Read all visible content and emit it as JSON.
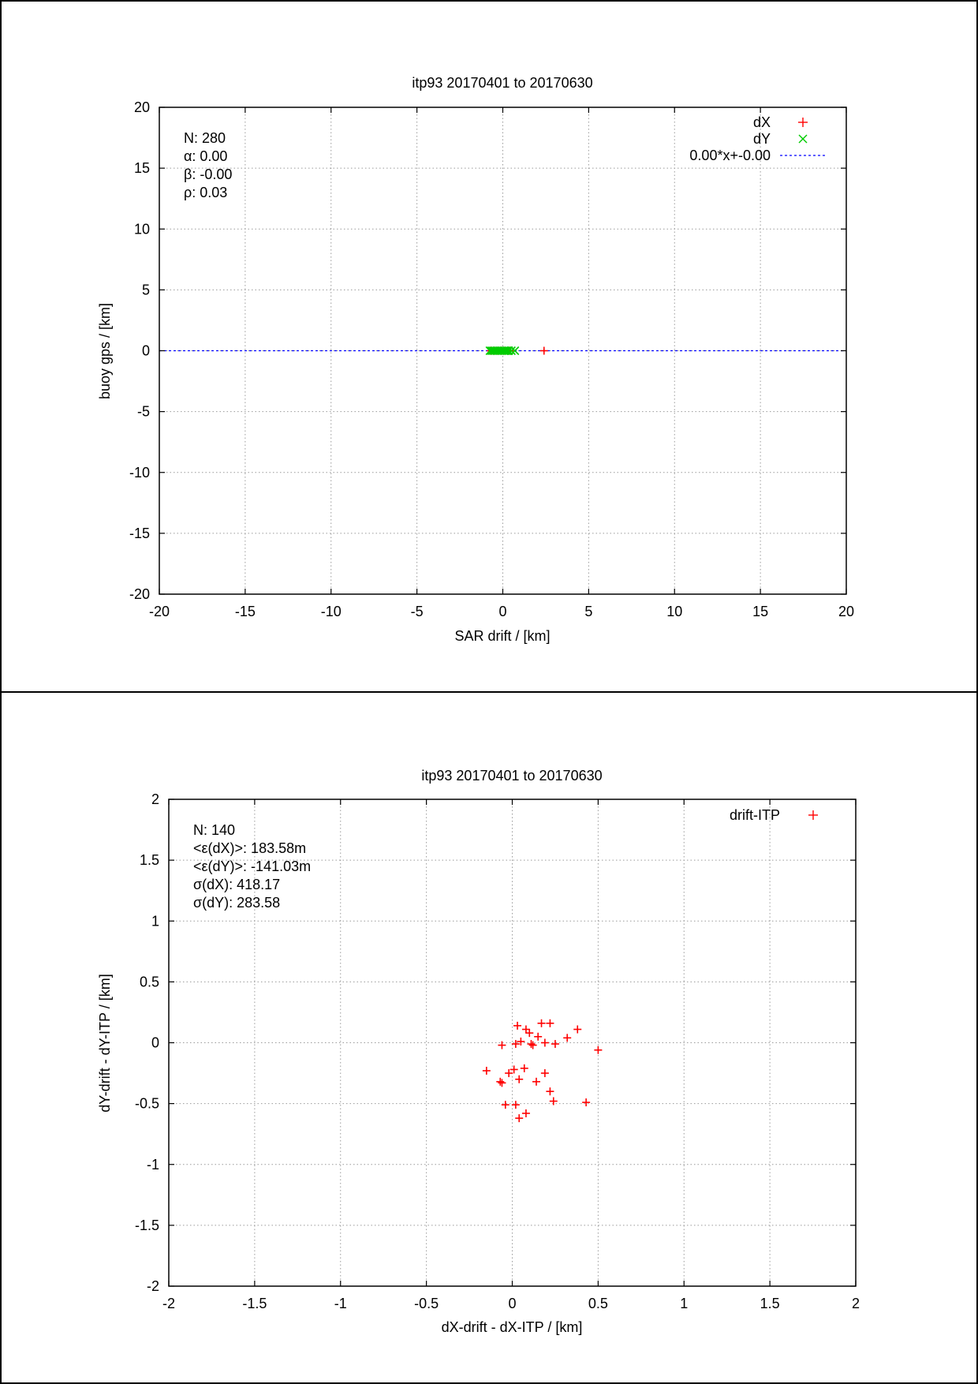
{
  "chart_data": [
    {
      "type": "scatter",
      "title": "itp93 20170401 to 20170630",
      "xlabel": "SAR drift / [km]",
      "ylabel": "buoy gps / [km]",
      "xlim": [
        -20,
        20
      ],
      "ylim": [
        -20,
        20
      ],
      "xticks": [
        "-20",
        "-15",
        "-10",
        "-5",
        "0",
        "5",
        "10",
        "15",
        "20"
      ],
      "yticks": [
        "-20",
        "-15",
        "-10",
        "-5",
        "0",
        "5",
        "10",
        "15",
        "20"
      ],
      "grid": true,
      "legend_position": "top-right",
      "stats": [
        "N: 280",
        "α: 0.00",
        "β: -0.00",
        "ρ: 0.03"
      ],
      "series": [
        {
          "name": "dX",
          "marker": "plus",
          "color": "#ff0000",
          "x": [
            -0.7,
            -0.5,
            -0.3,
            -0.1,
            0.1,
            0.3,
            0.4,
            2.4
          ],
          "y": [
            0,
            0,
            0,
            0,
            0,
            0,
            0,
            0
          ]
        },
        {
          "name": "dY",
          "marker": "cross",
          "color": "#00cc00",
          "x": [
            -0.75,
            -0.65,
            -0.55,
            -0.45,
            -0.35,
            -0.25,
            -0.15,
            -0.05,
            0.05,
            0.15,
            0.25,
            0.35,
            0.5,
            0.7
          ],
          "y": [
            0,
            0,
            0,
            0,
            0,
            0,
            0,
            0,
            0,
            0,
            0,
            0,
            0,
            0
          ]
        },
        {
          "name": "0.00*x+-0.00",
          "marker": "line-dashed",
          "color": "#0000ff",
          "x": [
            -20,
            20
          ],
          "y": [
            0,
            0
          ]
        }
      ]
    },
    {
      "type": "scatter",
      "title": "itp93 20170401 to 20170630",
      "xlabel": "dX-drift - dX-ITP / [km]",
      "ylabel": "dY-drift - dY-ITP / [km]",
      "xlim": [
        -2,
        2
      ],
      "ylim": [
        -2,
        2
      ],
      "xticks": [
        "-2",
        "-1.5",
        "-1",
        "-0.5",
        "0",
        "0.5",
        "1",
        "1.5",
        "2"
      ],
      "yticks": [
        "-2",
        "-1.5",
        "-1",
        "-0.5",
        "0",
        "0.5",
        "1",
        "1.5",
        "2"
      ],
      "grid": true,
      "legend_position": "top-right",
      "stats": [
        "N: 140",
        "<ε(dX)>:  183.58m",
        "<ε(dY)>: -141.03m",
        "σ(dX):  418.17",
        "σ(dY):  283.58"
      ],
      "series": [
        {
          "name": "drift-ITP",
          "marker": "plus",
          "color": "#ff0000",
          "x": [
            0.03,
            0.08,
            0.17,
            0.22,
            0.38,
            -0.06,
            0.02,
            0.05,
            0.12,
            0.15,
            0.19,
            0.25,
            0.32,
            0.5,
            -0.15,
            -0.06,
            -0.02,
            0.01,
            0.04,
            0.07,
            0.14,
            0.19,
            0.22,
            -0.07,
            0.24,
            -0.04,
            0.02,
            0.04,
            0.08,
            0.43,
            0.1,
            0.11
          ],
          "y": [
            0.14,
            0.11,
            0.16,
            0.16,
            0.11,
            -0.02,
            -0.01,
            0.01,
            -0.02,
            0.05,
            0.0,
            -0.01,
            0.04,
            -0.06,
            -0.23,
            -0.33,
            -0.25,
            -0.22,
            -0.3,
            -0.21,
            -0.32,
            -0.25,
            -0.4,
            -0.32,
            -0.48,
            -0.51,
            -0.51,
            -0.62,
            -0.58,
            -0.49,
            0.08,
            -0.01
          ]
        }
      ]
    }
  ]
}
